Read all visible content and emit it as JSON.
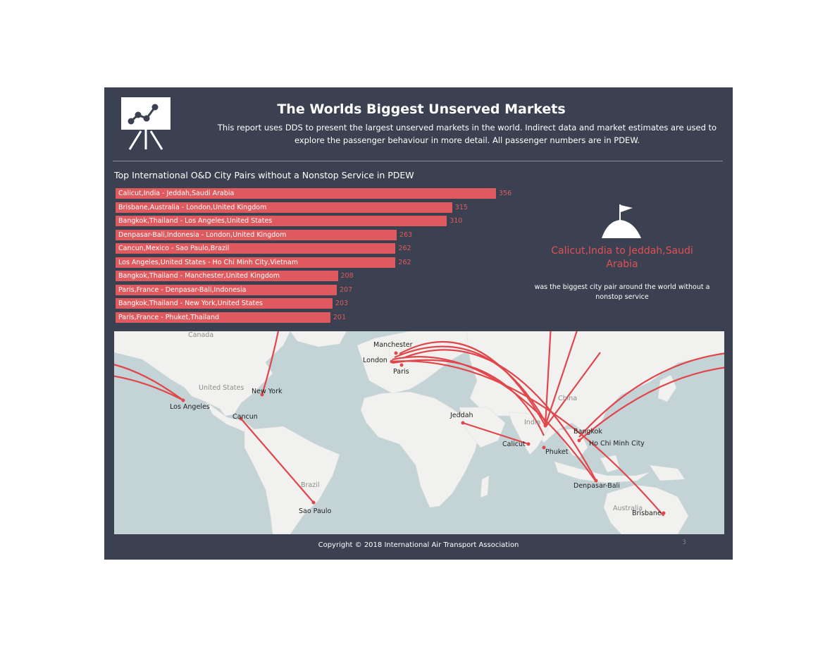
{
  "header": {
    "title": "The Worlds Biggest Unserved Markets",
    "description": "This report uses DDS to present the largest unserved markets in the world. Indirect data and market estimates are used to explore the passenger behaviour in more detail. All passenger numbers are in PDEW."
  },
  "chart_data": {
    "type": "bar",
    "title": "Top International O&D City Pairs without a Nonstop Service in PDEW",
    "categories": [
      "Calicut,India - Jeddah,Saudi Arabia",
      "Brisbane,Australia - London,United Kingdom",
      "Bangkok,Thailand - Los Angeles,United States",
      "Denpasar-Bali,Indonesia - London,United Kingdom",
      "Cancun,Mexico - Sao Paulo,Brazil",
      "Los Angeles,United States - Ho Chi Minh City,Vietnam",
      "Bangkok,Thailand - Manchester,United Kingdom",
      "Paris,France - Denpasar-Bali,Indonesia",
      "Bangkok,Thailand - New York,United States",
      "Paris,France - Phuket,Thailand"
    ],
    "values": [
      356,
      315,
      310,
      263,
      262,
      262,
      208,
      207,
      203,
      201
    ],
    "orientation": "horizontal",
    "bar_color": "#de5a5e"
  },
  "highlight": {
    "title": "Calicut,India to Jeddah,Saudi Arabia",
    "subtitle": "was the biggest city pair around the world without a nonstop service"
  },
  "map": {
    "cities": [
      "Manchester",
      "London",
      "Paris",
      "New York",
      "Los Angeles",
      "Cancun",
      "Sao Paulo",
      "Jeddah",
      "Calicut",
      "Bangkok",
      "Ho Chi Minh City",
      "Phuket",
      "Denpasar-Bali",
      "Brisbane"
    ],
    "countries": [
      "Canada",
      "United States",
      "Brazil",
      "China",
      "India",
      "Australia"
    ],
    "route_color": "#e0474c"
  },
  "footer": {
    "copyright": "Copyright © 2018 International Air Transport Association",
    "page_number": "3"
  }
}
